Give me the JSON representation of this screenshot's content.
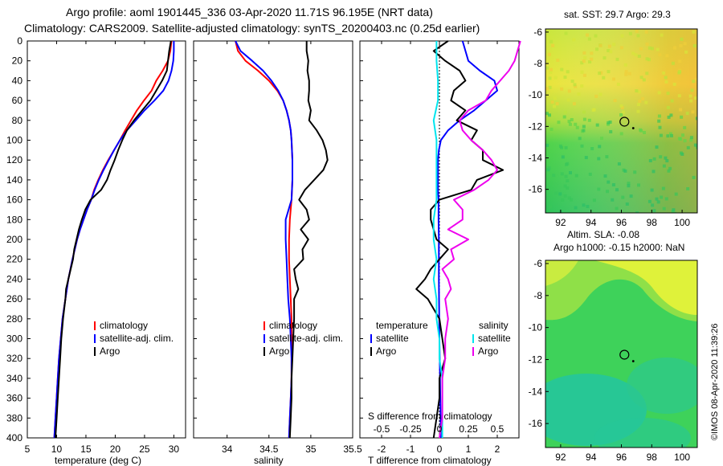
{
  "header": {
    "title_line1": "Argo profile: aoml 1901445_336 03-Apr-2020 11.71S 96.195E (NRT data)",
    "title_line2": "Climatology: CARS2009. Satellite-adjusted climatology: synTS_20200403.nc (0.25d earlier)"
  },
  "colors": {
    "climatology": "#ff0000",
    "satellite": "#0000ff",
    "argo": "#000000",
    "salinity_satellite": "#00e5ee",
    "salinity_argo": "#ee00ee"
  },
  "footer": {
    "timestamp": "©IMOS 08-Apr-2020 11:39:26"
  },
  "chart_data": [
    {
      "id": "temperature",
      "type": "line",
      "xlabel": "temperature (deg C)",
      "ylabel": "",
      "xlim": [
        5,
        32
      ],
      "ylim": [
        400,
        0
      ],
      "xticks": [
        5,
        10,
        15,
        20,
        25,
        30
      ],
      "yticks": [
        0,
        20,
        40,
        60,
        80,
        100,
        120,
        140,
        160,
        180,
        200,
        220,
        240,
        260,
        280,
        300,
        320,
        340,
        360,
        380,
        400
      ],
      "legend": [
        "climatology",
        "satellite-adj. clim.",
        "Argo"
      ],
      "series": [
        {
          "name": "climatology",
          "color": "#ff0000",
          "depth": [
            0,
            10,
            20,
            30,
            40,
            50,
            60,
            70,
            80,
            90,
            100,
            110,
            120,
            130,
            140,
            150,
            160,
            170,
            180,
            190,
            200,
            220,
            240,
            260,
            280,
            300,
            320,
            340,
            360,
            380,
            400
          ],
          "values": [
            29.6,
            29.4,
            29.0,
            28.1,
            27.0,
            26.2,
            24.9,
            23.7,
            22.7,
            21.7,
            20.8,
            19.8,
            18.8,
            17.9,
            17.1,
            16.4,
            15.9,
            15.2,
            14.6,
            14.0,
            13.5,
            12.7,
            12.0,
            11.5,
            11.0,
            10.7,
            10.4,
            10.2,
            10.0,
            9.8,
            9.6
          ]
        },
        {
          "name": "satellite-adj. clim.",
          "color": "#0000ff",
          "depth": [
            0,
            10,
            20,
            30,
            40,
            50,
            60,
            70,
            80,
            90,
            100,
            110,
            120,
            130,
            140,
            150,
            160,
            170,
            180,
            190,
            200,
            220,
            240,
            260,
            280,
            300,
            320,
            340,
            360,
            380,
            400
          ],
          "values": [
            30.0,
            30.0,
            29.9,
            29.6,
            29.1,
            28.2,
            26.7,
            25.0,
            23.5,
            22.0,
            20.8,
            19.8,
            18.9,
            18.0,
            17.2,
            16.5,
            15.9,
            15.2,
            14.6,
            14.0,
            13.5,
            12.7,
            12.0,
            11.5,
            11.0,
            10.7,
            10.4,
            10.2,
            10.0,
            9.8,
            9.6
          ]
        },
        {
          "name": "Argo",
          "color": "#000000",
          "depth": [
            0,
            10,
            20,
            30,
            40,
            50,
            60,
            70,
            80,
            90,
            100,
            110,
            120,
            130,
            140,
            150,
            160,
            170,
            180,
            190,
            200,
            210,
            220,
            230,
            240,
            250,
            260,
            280,
            300,
            320,
            340,
            360,
            380,
            400
          ],
          "values": [
            29.5,
            29.2,
            29.0,
            28.8,
            28.0,
            27.0,
            26.0,
            24.6,
            23.2,
            22.0,
            21.2,
            20.5,
            19.9,
            19.2,
            18.6,
            17.6,
            15.8,
            14.9,
            14.3,
            13.8,
            13.4,
            13.0,
            12.8,
            12.4,
            12.0,
            11.6,
            11.5,
            11.1,
            10.8,
            10.6,
            10.4,
            10.2,
            10.0,
            9.8
          ]
        }
      ]
    },
    {
      "id": "salinity",
      "type": "line",
      "xlabel": "salinity",
      "ylabel": "",
      "xlim": [
        33.6,
        35.5
      ],
      "ylim": [
        400,
        0
      ],
      "xticks": [
        34,
        34.5,
        35,
        35.5
      ],
      "legend": [
        "climatology",
        "satellite-adj. clim.",
        "Argo"
      ],
      "series": [
        {
          "name": "climatology",
          "color": "#ff0000",
          "depth": [
            0,
            10,
            20,
            30,
            40,
            50,
            60,
            70,
            80,
            90,
            100,
            120,
            140,
            160,
            180,
            200,
            220,
            240,
            260,
            280,
            300,
            320,
            340,
            360,
            380,
            400
          ],
          "values": [
            34.1,
            34.13,
            34.22,
            34.37,
            34.5,
            34.6,
            34.67,
            34.71,
            34.74,
            34.76,
            34.77,
            34.78,
            34.78,
            34.77,
            34.75,
            34.74,
            34.74,
            34.75,
            34.76,
            34.77,
            34.77,
            34.77,
            34.77,
            34.76,
            34.75,
            34.74
          ]
        },
        {
          "name": "satellite-adj. clim.",
          "color": "#0000ff",
          "depth": [
            0,
            10,
            20,
            30,
            40,
            50,
            60,
            70,
            80,
            90,
            100,
            120,
            140,
            160,
            180,
            200,
            220,
            240,
            260,
            280,
            300,
            320,
            340,
            360,
            380,
            400
          ],
          "values": [
            34.1,
            34.16,
            34.3,
            34.43,
            34.53,
            34.61,
            34.67,
            34.71,
            34.74,
            34.76,
            34.77,
            34.78,
            34.78,
            34.77,
            34.7,
            34.7,
            34.71,
            34.72,
            34.73,
            34.75,
            34.76,
            34.77,
            34.77,
            34.76,
            34.75,
            34.74
          ]
        },
        {
          "name": "Argo",
          "color": "#000000",
          "depth": [
            0,
            10,
            20,
            30,
            40,
            50,
            60,
            70,
            80,
            90,
            100,
            110,
            120,
            130,
            140,
            150,
            160,
            170,
            180,
            190,
            200,
            210,
            220,
            230,
            240,
            250,
            260,
            280,
            300,
            320,
            340,
            360,
            380,
            400
          ],
          "values": [
            34.95,
            34.95,
            34.97,
            34.96,
            34.98,
            34.98,
            34.97,
            35.0,
            34.98,
            35.07,
            35.14,
            35.18,
            35.2,
            35.15,
            35.04,
            34.93,
            34.86,
            34.95,
            34.98,
            34.88,
            34.97,
            34.9,
            34.91,
            34.8,
            34.82,
            34.85,
            34.8,
            34.8,
            34.79,
            34.78,
            34.77,
            34.77,
            34.76,
            34.75
          ]
        }
      ]
    },
    {
      "id": "difference",
      "type": "line",
      "xlabel": "T difference from climatology",
      "xlabel_top": "S difference from climatology",
      "xlim": [
        -2.75,
        2.75
      ],
      "ylim": [
        400,
        0
      ],
      "xticks": [
        -2,
        -1,
        0,
        1,
        2
      ],
      "top_ticks": [
        "-0.5",
        "-0.25",
        "0",
        "0.25",
        "0.5"
      ],
      "top_tick_values": [
        -2,
        -1,
        0,
        1,
        2
      ],
      "legend_title_left": "temperature",
      "legend_title_right": "salinity",
      "legend_left": [
        "satellite",
        "Argo"
      ],
      "legend_right": [
        "satellite",
        "Argo"
      ],
      "series": [
        {
          "name": "temperature satellite",
          "color": "#0000ff",
          "depth": [
            0,
            10,
            20,
            30,
            40,
            50,
            60,
            70,
            80,
            90,
            100,
            110,
            120,
            130,
            140,
            150,
            160,
            180,
            200,
            240,
            300,
            400
          ],
          "values": [
            0.8,
            0.9,
            1.0,
            1.4,
            1.9,
            2.0,
            1.6,
            1.2,
            0.7,
            0.3,
            0.05,
            -0.02,
            -0.05,
            -0.05,
            -0.05,
            -0.05,
            -0.03,
            -0.03,
            -0.02,
            -0.02,
            0.0,
            0.05
          ]
        },
        {
          "name": "temperature Argo",
          "color": "#000000",
          "depth": [
            0,
            10,
            20,
            30,
            40,
            50,
            60,
            70,
            80,
            90,
            100,
            110,
            120,
            130,
            140,
            150,
            160,
            170,
            180,
            190,
            200,
            210,
            220,
            230,
            240,
            250,
            260,
            280,
            300,
            320,
            340,
            360,
            380,
            400
          ],
          "values": [
            0.3,
            -0.2,
            0.2,
            0.7,
            0.9,
            0.5,
            0.4,
            0.9,
            0.6,
            1.3,
            1.1,
            1.5,
            1.5,
            2.2,
            1.3,
            1.1,
            0.0,
            -0.3,
            -0.3,
            -0.2,
            -0.1,
            0.3,
            0.0,
            -0.3,
            -0.5,
            -0.8,
            -0.4,
            0.0,
            0.1,
            0.2,
            0.0,
            0.0,
            -0.1,
            -0.2
          ]
        },
        {
          "name": "salinity satellite",
          "color": "#00e5ee",
          "depth": [
            0,
            20,
            40,
            60,
            80,
            100,
            120,
            140,
            160,
            180,
            200,
            220,
            240,
            260,
            280,
            300,
            320,
            340,
            360,
            380,
            400
          ],
          "values": [
            -0.1,
            -0.1,
            -0.05,
            -0.05,
            -0.2,
            -0.1,
            -0.1,
            -0.1,
            -0.1,
            -0.2,
            -0.2,
            -0.1,
            -0.2,
            -0.1,
            -0.1,
            0.0,
            0.0,
            0.1,
            0.1,
            0.1,
            0.1
          ]
        },
        {
          "name": "salinity Argo",
          "color": "#ee00ee",
          "depth": [
            0,
            10,
            20,
            30,
            40,
            50,
            60,
            70,
            80,
            90,
            100,
            110,
            120,
            130,
            140,
            150,
            160,
            170,
            180,
            190,
            200,
            210,
            220,
            230,
            240,
            250,
            260,
            280,
            300,
            320,
            340,
            360,
            380,
            400
          ],
          "values": [
            2.8,
            2.7,
            2.6,
            2.4,
            2.1,
            1.8,
            1.6,
            1.0,
            0.7,
            0.8,
            1.1,
            1.5,
            1.8,
            2.0,
            1.7,
            1.2,
            0.5,
            0.8,
            0.8,
            0.3,
            1.0,
            0.4,
            0.5,
            0.1,
            0.3,
            0.4,
            0.2,
            0.3,
            0.2,
            0.2,
            0.1,
            0.1,
            0.1,
            0.0
          ]
        }
      ]
    },
    {
      "id": "sst_map",
      "type": "heatmap",
      "title": "sat. SST: 29.7  Argo: 29.3",
      "xticks": [
        92,
        94,
        96,
        98,
        100
      ],
      "yticks": [
        -6,
        -8,
        -10,
        -12,
        -14,
        -16
      ],
      "xlim": [
        91,
        101
      ],
      "ylim": [
        -17.5,
        -5.8
      ],
      "marker": {
        "lon": 96.2,
        "lat": -11.7
      }
    },
    {
      "id": "sla_map",
      "type": "heatmap",
      "title_line1": "Altim. SLA: -0.08",
      "title_line2": "Argo h1000: -0.15 h2000: NaN",
      "xticks": [
        92,
        94,
        96,
        98,
        100
      ],
      "yticks": [
        -6,
        -8,
        -10,
        -12,
        -14,
        -16
      ],
      "xlim": [
        91,
        101
      ],
      "ylim": [
        -17.5,
        -5.8
      ],
      "marker": {
        "lon": 96.2,
        "lat": -11.7
      }
    }
  ]
}
